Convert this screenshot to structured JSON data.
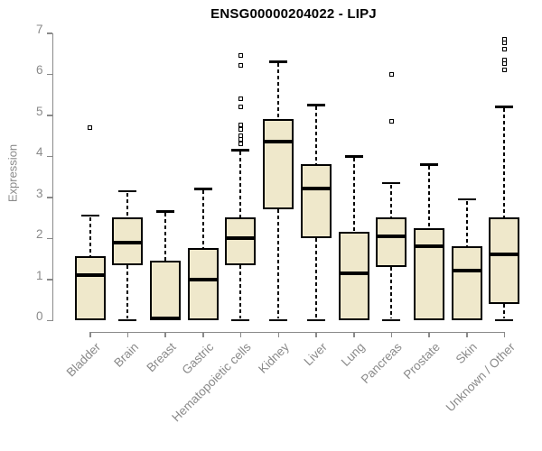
{
  "chart_data": {
    "type": "boxplot",
    "title": "ENSG00000204022 - LIPJ",
    "ylabel": "Expression",
    "ylim": [
      0,
      7
    ],
    "y_ticks": [
      "0",
      "1",
      "2",
      "3",
      "4",
      "5",
      "6",
      "7"
    ],
    "grid": false,
    "legend": null,
    "categories": [
      "Bladder",
      "Brain",
      "Breast",
      "Gastric",
      "Hematopoietic cells",
      "Kidney",
      "Liver",
      "Lung",
      "Pancreas",
      "Prostate",
      "Skin",
      "Unknown / Other"
    ],
    "boxes": [
      {
        "category": "Bladder",
        "min": 0,
        "q1": 0,
        "median": 1.1,
        "q3": 1.55,
        "max": 2.55,
        "outliers": [
          4.7
        ]
      },
      {
        "category": "Brain",
        "min": 0,
        "q1": 1.35,
        "median": 1.9,
        "q3": 2.5,
        "max": 3.15,
        "outliers": []
      },
      {
        "category": "Breast",
        "min": 0,
        "q1": 0,
        "median": 0.05,
        "q3": 1.45,
        "max": 2.65,
        "outliers": []
      },
      {
        "category": "Gastric",
        "min": 0,
        "q1": 0,
        "median": 1.0,
        "q3": 1.75,
        "max": 3.2,
        "outliers": []
      },
      {
        "category": "Hematopoietic cells",
        "min": 0,
        "q1": 1.35,
        "median": 2.0,
        "q3": 2.5,
        "max": 4.15,
        "outliers": [
          6.45,
          6.2,
          5.4,
          5.2,
          4.75,
          4.65,
          4.5,
          4.4,
          4.3
        ]
      },
      {
        "category": "Kidney",
        "min": 0,
        "q1": 2.7,
        "median": 4.35,
        "q3": 4.9,
        "max": 6.3,
        "outliers": []
      },
      {
        "category": "Liver",
        "min": 0,
        "q1": 2.0,
        "median": 3.2,
        "q3": 3.8,
        "max": 5.25,
        "outliers": []
      },
      {
        "category": "Lung",
        "min": 0,
        "q1": 0,
        "median": 1.15,
        "q3": 2.15,
        "max": 4.0,
        "outliers": []
      },
      {
        "category": "Pancreas",
        "min": 0,
        "q1": 1.3,
        "median": 2.05,
        "q3": 2.5,
        "max": 3.35,
        "outliers": [
          6.0,
          4.85
        ]
      },
      {
        "category": "Prostate",
        "min": 0,
        "q1": 0,
        "median": 1.8,
        "q3": 2.25,
        "max": 3.8,
        "outliers": []
      },
      {
        "category": "Skin",
        "min": 0,
        "q1": 0,
        "median": 1.2,
        "q3": 1.8,
        "max": 2.95,
        "outliers": []
      },
      {
        "category": "Unknown / Other",
        "min": 0,
        "q1": 0.4,
        "median": 1.6,
        "q3": 2.5,
        "max": 5.2,
        "outliers": [
          6.85,
          6.75,
          6.6,
          6.35,
          6.25,
          6.1
        ]
      }
    ]
  },
  "colors": {
    "box_fill": "#EFE8CB",
    "box_border": "#000000",
    "whisker": "#000000",
    "median": "#000000",
    "axis": "#8a8a8a",
    "tick_label": "#8a8a8a",
    "title": "#000000",
    "background": "#ffffff"
  }
}
